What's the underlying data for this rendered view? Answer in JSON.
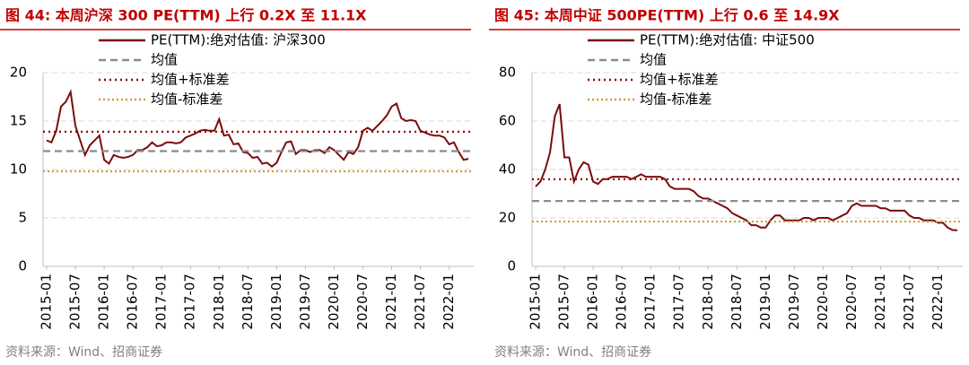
{
  "chart_data": [
    {
      "type": "line",
      "title": "图 44:  本周沪深 300 PE(TTM) 上行 0.2X 至 11.1X",
      "source": "资料来源：Wind、招商证券",
      "x": [
        "2015-01",
        "2015-02",
        "2015-03",
        "2015-04",
        "2015-05",
        "2015-06",
        "2015-07",
        "2015-08",
        "2015-09",
        "2015-10",
        "2015-11",
        "2015-12",
        "2016-01",
        "2016-02",
        "2016-03",
        "2016-04",
        "2016-05",
        "2016-06",
        "2016-07",
        "2016-08",
        "2016-09",
        "2016-10",
        "2016-11",
        "2016-12",
        "2017-01",
        "2017-02",
        "2017-03",
        "2017-04",
        "2017-05",
        "2017-06",
        "2017-07",
        "2017-08",
        "2017-09",
        "2017-10",
        "2017-11",
        "2017-12",
        "2018-01",
        "2018-02",
        "2018-03",
        "2018-04",
        "2018-05",
        "2018-06",
        "2018-07",
        "2018-08",
        "2018-09",
        "2018-10",
        "2018-11",
        "2018-12",
        "2019-01",
        "2019-02",
        "2019-03",
        "2019-04",
        "2019-05",
        "2019-06",
        "2019-07",
        "2019-08",
        "2019-09",
        "2019-10",
        "2019-11",
        "2019-12",
        "2020-01",
        "2020-02",
        "2020-03",
        "2020-04",
        "2020-05",
        "2020-06",
        "2020-07",
        "2020-08",
        "2020-09",
        "2020-10",
        "2020-11",
        "2020-12",
        "2021-01",
        "2021-02",
        "2021-03",
        "2021-04",
        "2021-05",
        "2021-06",
        "2021-07",
        "2021-08",
        "2021-09",
        "2021-10",
        "2021-11",
        "2021-12",
        "2022-01",
        "2022-02",
        "2022-03",
        "2022-04",
        "2022-05"
      ],
      "xticks": [
        "2015-01",
        "2015-07",
        "2016-01",
        "2016-07",
        "2017-01",
        "2017-07",
        "2018-01",
        "2018-07",
        "2019-01",
        "2019-07",
        "2020-01",
        "2020-07",
        "2021-01",
        "2021-07",
        "2022-01"
      ],
      "series": [
        {
          "name": "PE(TTM):绝对估值: 沪深300",
          "color": "#7b0c0c",
          "values": [
            13.0,
            12.8,
            14.0,
            16.5,
            17.0,
            18.0,
            14.5,
            13.0,
            11.5,
            12.5,
            13.0,
            13.5,
            11.0,
            10.6,
            11.5,
            11.3,
            11.2,
            11.3,
            11.5,
            12.0,
            12.0,
            12.3,
            12.8,
            12.4,
            12.5,
            12.8,
            12.8,
            12.7,
            12.8,
            13.3,
            13.5,
            13.7,
            14.0,
            14.1,
            14.0,
            14.0,
            15.2,
            13.5,
            13.6,
            12.6,
            12.7,
            11.8,
            11.7,
            11.2,
            11.3,
            10.6,
            10.7,
            10.3,
            10.7,
            11.8,
            12.8,
            12.9,
            11.6,
            12.0,
            12.0,
            11.8,
            12.0,
            12.0,
            11.7,
            12.3,
            12.0,
            11.5,
            11.0,
            11.8,
            11.6,
            12.3,
            14.0,
            14.3,
            14.0,
            14.5,
            15.0,
            15.6,
            16.5,
            16.8,
            15.3,
            15.0,
            15.1,
            15.0,
            14.0,
            13.8,
            13.6,
            13.5,
            13.5,
            13.3,
            12.6,
            12.8,
            11.8,
            11.0,
            11.1
          ]
        }
      ],
      "reference_lines": [
        {
          "name": "均值",
          "color": "#8c8c8c",
          "value": 11.9
        },
        {
          "name": "均值+标准差",
          "color": "#8b0000",
          "value": 13.9
        },
        {
          "name": "均值-标准差",
          "color": "#c9a03c",
          "value": 9.8
        }
      ],
      "ylim": [
        0,
        20
      ],
      "yticks": [
        0,
        5,
        10,
        15,
        20
      ],
      "grid": true
    },
    {
      "type": "line",
      "title": "图 45:  本周中证 500PE(TTM) 上行 0.6 至 14.9X",
      "source": "资料来源：Wind、招商证券",
      "x": [
        "2015-01",
        "2015-02",
        "2015-03",
        "2015-04",
        "2015-05",
        "2015-06",
        "2015-07",
        "2015-08",
        "2015-09",
        "2015-10",
        "2015-11",
        "2015-12",
        "2016-01",
        "2016-02",
        "2016-03",
        "2016-04",
        "2016-05",
        "2016-06",
        "2016-07",
        "2016-08",
        "2016-09",
        "2016-10",
        "2016-11",
        "2016-12",
        "2017-01",
        "2017-02",
        "2017-03",
        "2017-04",
        "2017-05",
        "2017-06",
        "2017-07",
        "2017-08",
        "2017-09",
        "2017-10",
        "2017-11",
        "2017-12",
        "2018-01",
        "2018-02",
        "2018-03",
        "2018-04",
        "2018-05",
        "2018-06",
        "2018-07",
        "2018-08",
        "2018-09",
        "2018-10",
        "2018-11",
        "2018-12",
        "2019-01",
        "2019-02",
        "2019-03",
        "2019-04",
        "2019-05",
        "2019-06",
        "2019-07",
        "2019-08",
        "2019-09",
        "2019-10",
        "2019-11",
        "2019-12",
        "2020-01",
        "2020-02",
        "2020-03",
        "2020-04",
        "2020-05",
        "2020-06",
        "2020-07",
        "2020-08",
        "2020-09",
        "2020-10",
        "2020-11",
        "2020-12",
        "2021-01",
        "2021-02",
        "2021-03",
        "2021-04",
        "2021-05",
        "2021-06",
        "2021-07",
        "2021-08",
        "2021-09",
        "2021-10",
        "2021-11",
        "2021-12",
        "2022-01",
        "2022-02",
        "2022-03",
        "2022-04",
        "2022-05"
      ],
      "xticks": [
        "2015-01",
        "2015-07",
        "2016-01",
        "2016-07",
        "2017-01",
        "2017-07",
        "2018-01",
        "2018-07",
        "2019-01",
        "2019-07",
        "2020-01",
        "2020-07",
        "2021-01",
        "2021-07",
        "2022-01"
      ],
      "series": [
        {
          "name": "PE(TTM):绝对估值: 中证500",
          "color": "#7b0c0c",
          "values": [
            33,
            35,
            40,
            47,
            62,
            67,
            45,
            45,
            35,
            40,
            43,
            42,
            35,
            34,
            36,
            36,
            37,
            37,
            37,
            37,
            36,
            37,
            38,
            37,
            37,
            37,
            37,
            36,
            33,
            32,
            32,
            32,
            32,
            31,
            29,
            28,
            28,
            27,
            26,
            25,
            24,
            22,
            21,
            20,
            19,
            17,
            17,
            16,
            16,
            19,
            21,
            21,
            19,
            19,
            19,
            19,
            20,
            20,
            19,
            20,
            20,
            20,
            19,
            20,
            21,
            22,
            25,
            26,
            25,
            25,
            25,
            25,
            24,
            24,
            23,
            23,
            23,
            23,
            21,
            20,
            20,
            19,
            19,
            19,
            18,
            18,
            16,
            15,
            14.9
          ]
        }
      ],
      "reference_lines": [
        {
          "name": "均值",
          "color": "#8c8c8c",
          "value": 27
        },
        {
          "name": "均值+标准差",
          "color": "#8b0000",
          "value": 36
        },
        {
          "name": "均值-标准差",
          "color": "#c9a03c",
          "value": 18.5
        }
      ],
      "ylim": [
        0,
        80
      ],
      "yticks": [
        0,
        20,
        40,
        60,
        80
      ],
      "grid": true
    }
  ]
}
